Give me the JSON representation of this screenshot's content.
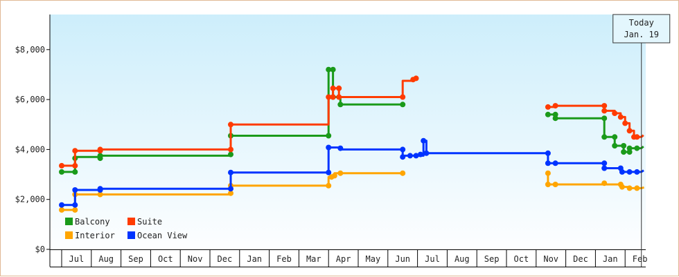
{
  "chart_data": {
    "type": "line",
    "title": "",
    "xlabel": "",
    "ylabel": "",
    "ylim": [
      0,
      9000
    ],
    "y_ticks": [
      {
        "value": 0,
        "label": "$0"
      },
      {
        "value": 2000,
        "label": "$2,000"
      },
      {
        "value": 4000,
        "label": "$4,000"
      },
      {
        "value": 6000,
        "label": "$6,000"
      },
      {
        "value": 8000,
        "label": "$8,000"
      }
    ],
    "x_range": [
      0,
      20.1
    ],
    "x_unit": "months from mid-June (year 1); 19.55 = Jan. 19 (year 3)",
    "month_labels": [
      "Jul",
      "Aug",
      "Sep",
      "Oct",
      "Nov",
      "Dec",
      "Jan",
      "Feb",
      "Mar",
      "Apr",
      "May",
      "Jun",
      "Jul",
      "Aug",
      "Sep",
      "Oct",
      "Nov",
      "Dec",
      "Jan",
      "Feb"
    ],
    "grid": false,
    "legend_position": "bottom-left",
    "today": {
      "line1": "Today",
      "line2": "Jan. 19",
      "x": 19.55
    },
    "background_gradient": [
      "#cdeefb",
      "#fdfeff"
    ],
    "series": [
      {
        "name": "Balcony",
        "color": "#1a9a1a",
        "steps": [
          [
            [
              0.0,
              3100
            ],
            [
              0.45,
              3100
            ],
            [
              0.45,
              3700
            ],
            [
              1.3,
              3700
            ],
            [
              1.3,
              3750
            ],
            [
              5.7,
              3750
            ],
            [
              5.7,
              4550
            ],
            [
              9.0,
              4550
            ],
            [
              9.0,
              7200
            ],
            [
              9.15,
              7200
            ],
            [
              9.15,
              6100
            ],
            [
              9.4,
              6100
            ],
            [
              9.4,
              5800
            ],
            [
              11.5,
              5800
            ]
          ],
          [
            [
              16.4,
              5400
            ],
            [
              16.65,
              5400
            ],
            [
              16.65,
              5250
            ],
            [
              18.3,
              5250
            ],
            [
              18.3,
              4500
            ],
            [
              18.65,
              4500
            ],
            [
              18.65,
              4150
            ],
            [
              18.95,
              4150
            ],
            [
              18.95,
              3900
            ],
            [
              19.15,
              3900
            ],
            [
              19.15,
              4050
            ],
            [
              19.55,
              4050
            ]
          ]
        ],
        "markers": [
          [
            0.0,
            3100
          ],
          [
            0.45,
            3100
          ],
          [
            0.45,
            3650
          ],
          [
            1.3,
            3650
          ],
          [
            1.3,
            3750
          ],
          [
            5.7,
            3800
          ],
          [
            5.7,
            4550
          ],
          [
            9.0,
            4550
          ],
          [
            9.0,
            7200
          ],
          [
            9.15,
            7200
          ],
          [
            9.15,
            6100
          ],
          [
            9.4,
            5800
          ],
          [
            11.5,
            5800
          ],
          [
            16.4,
            5400
          ],
          [
            16.65,
            5400
          ],
          [
            16.65,
            5250
          ],
          [
            18.3,
            5250
          ],
          [
            18.3,
            4500
          ],
          [
            18.65,
            4500
          ],
          [
            18.65,
            4150
          ],
          [
            18.95,
            4150
          ],
          [
            18.95,
            3900
          ],
          [
            19.15,
            3900
          ],
          [
            19.15,
            4050
          ],
          [
            19.4,
            4050
          ]
        ],
        "projection": [
          [
            19.55,
            4050
          ],
          [
            20.1,
            4200
          ]
        ]
      },
      {
        "name": "Suite",
        "color": "#ff3b00",
        "steps": [
          [
            [
              0.0,
              3350
            ],
            [
              0.45,
              3350
            ],
            [
              0.45,
              3950
            ],
            [
              1.3,
              3950
            ],
            [
              1.3,
              4000
            ],
            [
              5.7,
              4000
            ],
            [
              5.7,
              5000
            ],
            [
              9.0,
              5000
            ],
            [
              9.0,
              6100
            ],
            [
              9.15,
              6100
            ],
            [
              9.15,
              6450
            ],
            [
              9.35,
              6450
            ],
            [
              9.35,
              6100
            ],
            [
              11.5,
              6100
            ],
            [
              11.5,
              6750
            ],
            [
              11.85,
              6750
            ],
            [
              11.95,
              6850
            ]
          ],
          [
            [
              16.4,
              5700
            ],
            [
              16.65,
              5700
            ],
            [
              16.65,
              5750
            ],
            [
              18.3,
              5750
            ],
            [
              18.3,
              5550
            ],
            [
              18.65,
              5550
            ],
            [
              18.65,
              5450
            ],
            [
              18.85,
              5450
            ],
            [
              18.85,
              5300
            ],
            [
              19.0,
              5300
            ],
            [
              19.0,
              5050
            ],
            [
              19.15,
              5050
            ],
            [
              19.15,
              4750
            ],
            [
              19.3,
              4750
            ],
            [
              19.3,
              4500
            ],
            [
              19.55,
              4500
            ]
          ]
        ],
        "markers": [
          [
            0.0,
            3350
          ],
          [
            0.45,
            3350
          ],
          [
            0.45,
            3950
          ],
          [
            1.3,
            3950
          ],
          [
            1.3,
            4000
          ],
          [
            5.7,
            4000
          ],
          [
            5.7,
            5000
          ],
          [
            9.0,
            6100
          ],
          [
            9.15,
            6100
          ],
          [
            9.15,
            6450
          ],
          [
            9.35,
            6450
          ],
          [
            9.35,
            6100
          ],
          [
            11.5,
            6100
          ],
          [
            11.85,
            6800
          ],
          [
            11.95,
            6850
          ],
          [
            16.4,
            5700
          ],
          [
            16.65,
            5750
          ],
          [
            18.3,
            5750
          ],
          [
            18.3,
            5550
          ],
          [
            18.65,
            5450
          ],
          [
            18.85,
            5300
          ],
          [
            19.0,
            5050
          ],
          [
            19.15,
            4750
          ],
          [
            19.3,
            4500
          ],
          [
            19.4,
            4500
          ]
        ],
        "projection": [
          [
            19.55,
            4500
          ],
          [
            20.1,
            4650
          ]
        ]
      },
      {
        "name": "Interior",
        "color": "#ffa500",
        "steps": [
          [
            [
              0.0,
              1580
            ],
            [
              0.45,
              1580
            ],
            [
              0.45,
              2200
            ],
            [
              1.3,
              2200
            ],
            [
              1.3,
              2200
            ],
            [
              5.7,
              2200
            ],
            [
              5.7,
              2550
            ],
            [
              9.0,
              2550
            ],
            [
              9.0,
              2900
            ],
            [
              9.2,
              2900
            ],
            [
              9.2,
              3050
            ],
            [
              11.5,
              3050
            ]
          ],
          [
            [
              16.4,
              3050
            ],
            [
              16.4,
              2600
            ],
            [
              16.65,
              2600
            ],
            [
              18.3,
              2600
            ],
            [
              18.3,
              2600
            ],
            [
              18.85,
              2600
            ],
            [
              18.85,
              2500
            ],
            [
              19.15,
              2500
            ],
            [
              19.15,
              2450
            ],
            [
              19.55,
              2450
            ]
          ]
        ],
        "markers": [
          [
            0.0,
            1580
          ],
          [
            0.45,
            1580
          ],
          [
            0.45,
            2200
          ],
          [
            1.3,
            2200
          ],
          [
            5.7,
            2250
          ],
          [
            5.7,
            2550
          ],
          [
            9.0,
            2550
          ],
          [
            9.1,
            2900
          ],
          [
            9.2,
            2950
          ],
          [
            9.4,
            3050
          ],
          [
            11.5,
            3050
          ],
          [
            16.4,
            3050
          ],
          [
            16.4,
            2600
          ],
          [
            16.65,
            2600
          ],
          [
            18.3,
            2650
          ],
          [
            18.85,
            2600
          ],
          [
            18.9,
            2500
          ],
          [
            19.15,
            2450
          ],
          [
            19.4,
            2450
          ]
        ],
        "projection": [
          [
            19.55,
            2450
          ],
          [
            20.1,
            2500
          ]
        ]
      },
      {
        "name": "Ocean View",
        "color": "#0033ff",
        "steps": [
          [
            [
              0.0,
              1780
            ],
            [
              0.45,
              1780
            ],
            [
              0.45,
              2380
            ],
            [
              1.3,
              2380
            ],
            [
              1.3,
              2430
            ],
            [
              5.7,
              2430
            ],
            [
              5.7,
              3080
            ],
            [
              9.0,
              3080
            ],
            [
              9.0,
              4080
            ],
            [
              9.4,
              4080
            ],
            [
              9.4,
              4000
            ],
            [
              11.5,
              4000
            ],
            [
              11.5,
              3750
            ],
            [
              12.2,
              3750
            ],
            [
              12.2,
              4350
            ],
            [
              12.3,
              4350
            ],
            [
              12.3,
              3850
            ],
            [
              16.4,
              3850
            ],
            [
              16.4,
              3450
            ],
            [
              16.65,
              3450
            ],
            [
              18.3,
              3450
            ],
            [
              18.3,
              3250
            ],
            [
              18.85,
              3250
            ],
            [
              18.85,
              3100
            ],
            [
              19.55,
              3100
            ]
          ]
        ],
        "markers": [
          [
            0.0,
            1780
          ],
          [
            0.45,
            1780
          ],
          [
            0.45,
            2380
          ],
          [
            1.3,
            2380
          ],
          [
            1.3,
            2430
          ],
          [
            5.7,
            2430
          ],
          [
            5.7,
            3080
          ],
          [
            9.0,
            3080
          ],
          [
            9.0,
            4080
          ],
          [
            9.4,
            4050
          ],
          [
            11.5,
            4000
          ],
          [
            11.5,
            3700
          ],
          [
            11.75,
            3750
          ],
          [
            11.95,
            3750
          ],
          [
            12.1,
            3800
          ],
          [
            12.2,
            4350
          ],
          [
            12.3,
            3850
          ],
          [
            16.4,
            3850
          ],
          [
            16.4,
            3450
          ],
          [
            16.65,
            3450
          ],
          [
            18.3,
            3450
          ],
          [
            18.3,
            3250
          ],
          [
            18.85,
            3250
          ],
          [
            18.9,
            3100
          ],
          [
            19.15,
            3100
          ],
          [
            19.4,
            3100
          ]
        ],
        "projection": [
          [
            19.55,
            3100
          ],
          [
            20.1,
            3220
          ]
        ]
      }
    ]
  }
}
